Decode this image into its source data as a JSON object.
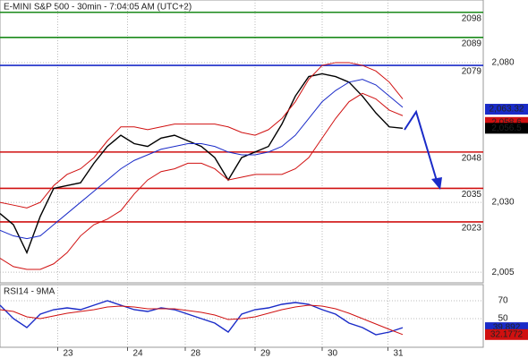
{
  "chart_data": [
    {
      "type": "line",
      "title": "E-MINI S&P 500 - 30min - 7:04:05 AM (UTC+2)",
      "xlim": [
        0,
        36
      ],
      "ylim": [
        2001.2,
        2102.4
      ],
      "xticks": [
        {
          "value": 4.3,
          "label": "23"
        },
        {
          "value": 9.5,
          "label": "24"
        },
        {
          "value": 13.8,
          "label": "28"
        },
        {
          "value": 19,
          "label": "29"
        },
        {
          "value": 24,
          "label": "30"
        },
        {
          "value": 28.9,
          "label": "31"
        }
      ],
      "yticks": [
        {
          "value": 2005,
          "label": "2,005"
        },
        {
          "value": 2030,
          "label": "2,030"
        },
        {
          "value": 2080,
          "label": "2,080"
        }
      ],
      "grid": true,
      "x": [
        0,
        1,
        2,
        3,
        4,
        5,
        6,
        7,
        8,
        9,
        10,
        11,
        12,
        13,
        14,
        15,
        16,
        17,
        18,
        19,
        20,
        21,
        22,
        23,
        24,
        25,
        26,
        27,
        28,
        29,
        30
      ],
      "series": [
        {
          "color": "#000000",
          "values": [
            2026,
            2022,
            2012,
            2025,
            2035,
            2036,
            2037,
            2044,
            2050,
            2054,
            2051,
            2050,
            2053,
            2054,
            2052,
            2050,
            2046,
            2038,
            2046,
            2048,
            2050,
            2058,
            2068,
            2075,
            2076,
            2075,
            2073,
            2068,
            2062,
            2057,
            2056.5
          ]
        },
        {
          "color": "#1a2bc8",
          "values": [
            2020,
            2018,
            2017,
            2018,
            2022,
            2026,
            2030,
            2034,
            2038,
            2042,
            2045,
            2047,
            2049,
            2050,
            2051,
            2051,
            2050,
            2048,
            2047,
            2047,
            2048,
            2050,
            2054,
            2060,
            2066,
            2070,
            2073,
            2074,
            2072,
            2068,
            2064
          ]
        },
        {
          "color": "#d01010",
          "values": [
            2030,
            2029,
            2028,
            2030,
            2036,
            2040,
            2042,
            2046,
            2052,
            2057,
            2057,
            2056,
            2057,
            2058,
            2058,
            2058,
            2058,
            2057,
            2055,
            2054,
            2056,
            2060,
            2066,
            2074,
            2079,
            2080,
            2080,
            2079,
            2077,
            2073,
            2067
          ]
        },
        {
          "color": "#d01010",
          "values": [
            2010,
            2007,
            2006,
            2006,
            2008,
            2012,
            2018,
            2022,
            2024,
            2027,
            2033,
            2038,
            2041,
            2042,
            2044,
            2044,
            2042,
            2038,
            2039,
            2040,
            2040,
            2040,
            2042,
            2046,
            2053,
            2060,
            2066,
            2069,
            2067,
            2063,
            2061
          ]
        }
      ],
      "levels": [
        {
          "value": 2098,
          "color": "#1a8a1a"
        },
        {
          "value": 2089,
          "color": "#1a8a1a"
        },
        {
          "value": 2079,
          "color": "#1a2bc8"
        },
        {
          "value": 2048,
          "color": "#d01010"
        },
        {
          "value": 2035,
          "color": "#d01010"
        },
        {
          "value": 2023,
          "color": "#d01010"
        }
      ],
      "price_tags": [
        {
          "value": 2063.32,
          "label": "2,063.32",
          "color": "#1a2bc8"
        },
        {
          "value": 2058.6,
          "label": "2,058.6",
          "color": "#d01010"
        },
        {
          "value": 2056.5,
          "label": "2,056.5",
          "color": "#000000"
        }
      ]
    },
    {
      "type": "line",
      "title": "RSI14 - 9MA",
      "xlim": [
        0,
        36
      ],
      "ylim": [
        18,
        88
      ],
      "yticks": [
        50,
        70
      ],
      "grid": true,
      "x": [
        0,
        1,
        2,
        3,
        4,
        5,
        6,
        7,
        8,
        9,
        10,
        11,
        12,
        13,
        14,
        15,
        16,
        17,
        18,
        19,
        20,
        21,
        22,
        23,
        24,
        25,
        26,
        27,
        28,
        29,
        30
      ],
      "series": [
        {
          "color": "#1a2bc8",
          "values": [
            65,
            50,
            40,
            55,
            60,
            62,
            60,
            65,
            70,
            65,
            60,
            58,
            62,
            60,
            55,
            50,
            45,
            35,
            55,
            60,
            62,
            66,
            68,
            66,
            60,
            55,
            45,
            40,
            32,
            35,
            39.892
          ]
        },
        {
          "color": "#d01010",
          "values": [
            60,
            58,
            52,
            50,
            53,
            56,
            58,
            60,
            63,
            64,
            63,
            61,
            61,
            61,
            59,
            57,
            54,
            49,
            50,
            52,
            56,
            60,
            63,
            65,
            64,
            61,
            56,
            50,
            44,
            38,
            32.1772
          ]
        }
      ],
      "tags": [
        39.892,
        32.1772
      ]
    }
  ]
}
